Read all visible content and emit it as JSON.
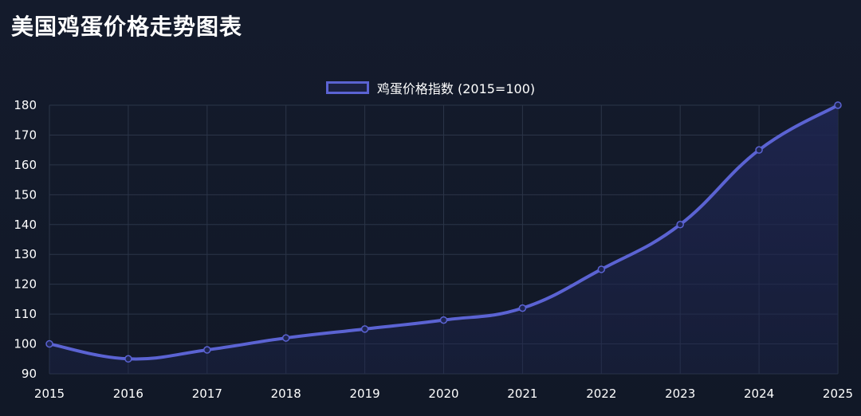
{
  "page": {
    "title": "美国鸡蛋价格走势图表"
  },
  "chart_data": {
    "type": "line",
    "title": "美国鸡蛋价格走势图表",
    "x": [
      "2015",
      "2016",
      "2017",
      "2018",
      "2019",
      "2020",
      "2021",
      "2022",
      "2023",
      "2024",
      "2025"
    ],
    "series": [
      {
        "name": "鸡蛋价格指数 (2015=100)",
        "values": [
          100,
          95,
          98,
          102,
          105,
          108,
          112,
          125,
          140,
          165,
          180
        ],
        "color": "#5b63d3"
      }
    ],
    "y_ticks": [
      "90",
      "100",
      "110",
      "120",
      "130",
      "140",
      "150",
      "160",
      "170",
      "180"
    ],
    "ylim": [
      90,
      180
    ],
    "xlabel": "",
    "ylabel": "",
    "grid": true,
    "legend_position": "top-center",
    "colors": {
      "background": "#131a2a",
      "grid": "#2b3548",
      "line": "#5b63d3",
      "fill": "#1e2550"
    }
  }
}
